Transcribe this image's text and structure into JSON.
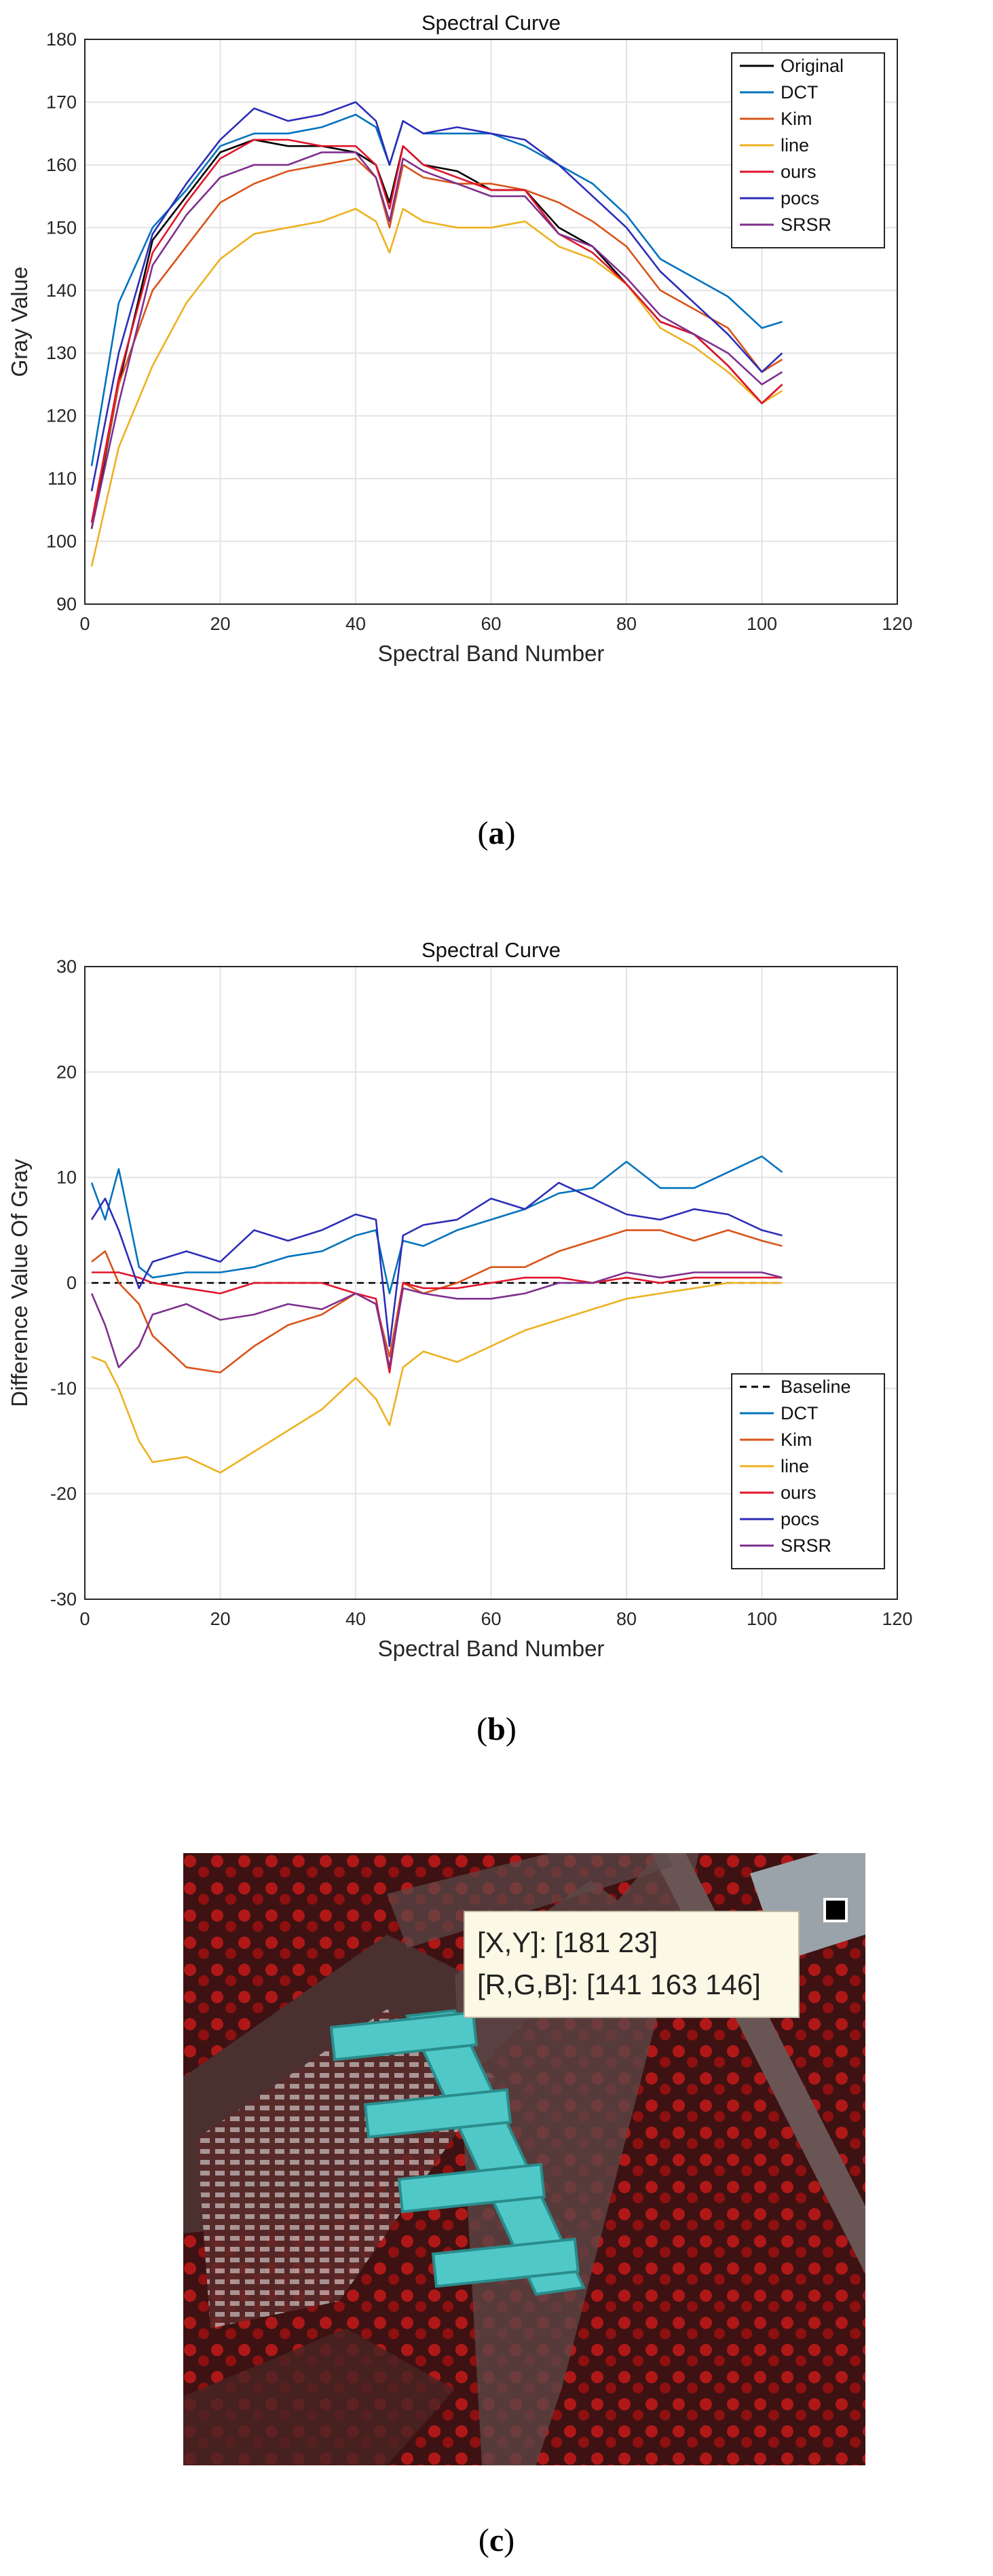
{
  "chart_data": [
    {
      "type": "line",
      "title": "Spectral Curve",
      "xlabel": "Spectral Band Number",
      "ylabel": "Gray Value",
      "xlim": [
        0,
        120
      ],
      "ylim": [
        90,
        180
      ],
      "xticks": [
        0,
        20,
        40,
        60,
        80,
        100,
        120
      ],
      "yticks": [
        90,
        100,
        110,
        120,
        130,
        140,
        150,
        160,
        170,
        180
      ],
      "grid": true,
      "legend_position": "top-right",
      "x": [
        1,
        5,
        10,
        15,
        20,
        25,
        30,
        35,
        40,
        43,
        45,
        47,
        50,
        55,
        60,
        65,
        70,
        75,
        80,
        85,
        90,
        95,
        100,
        103
      ],
      "series": [
        {
          "name": "Original",
          "color": "#000000",
          "dash": "",
          "values": [
            102,
            125,
            148,
            155,
            162,
            164,
            163,
            163,
            162,
            160,
            154,
            163,
            160,
            159,
            156,
            156,
            150,
            147,
            141,
            135,
            133,
            128,
            122,
            125
          ]
        },
        {
          "name": "DCT",
          "color": "#0072bd",
          "dash": "",
          "values": [
            112,
            138,
            150,
            156,
            163,
            165,
            165,
            166,
            168,
            166,
            160,
            167,
            165,
            165,
            165,
            163,
            160,
            157,
            152,
            145,
            142,
            139,
            134,
            135
          ]
        },
        {
          "name": "Kim",
          "color": "#d95319",
          "dash": "",
          "values": [
            103,
            125,
            140,
            147,
            154,
            157,
            159,
            160,
            161,
            158,
            150,
            160,
            158,
            157,
            157,
            156,
            154,
            151,
            147,
            140,
            137,
            134,
            127,
            129
          ]
        },
        {
          "name": "line",
          "color": "#edb120",
          "dash": "",
          "values": [
            96,
            115,
            128,
            138,
            145,
            149,
            150,
            151,
            153,
            151,
            146,
            153,
            151,
            150,
            150,
            151,
            147,
            145,
            141,
            134,
            131,
            127,
            122,
            124
          ]
        },
        {
          "name": "ours",
          "color": "#e0142b",
          "dash": "",
          "values": [
            103,
            126,
            146,
            154,
            161,
            164,
            164,
            163,
            163,
            160,
            153,
            163,
            160,
            158,
            156,
            156,
            149,
            146,
            141,
            135,
            133,
            128,
            122,
            125
          ]
        },
        {
          "name": "pocs",
          "color": "#2d2db8",
          "dash": "",
          "values": [
            108,
            130,
            149,
            157,
            164,
            169,
            167,
            168,
            170,
            167,
            160,
            167,
            165,
            166,
            165,
            164,
            160,
            155,
            150,
            143,
            138,
            133,
            127,
            130
          ]
        },
        {
          "name": "SRSR",
          "color": "#7e2f8e",
          "dash": "",
          "values": [
            102,
            122,
            144,
            152,
            158,
            160,
            160,
            162,
            162,
            158,
            151,
            161,
            159,
            157,
            155,
            155,
            149,
            147,
            142,
            136,
            133,
            130,
            125,
            127
          ]
        }
      ]
    },
    {
      "type": "line",
      "title": "Spectral Curve",
      "xlabel": "Spectral Band Number",
      "ylabel": "Difference Value Of Gray",
      "xlim": [
        0,
        120
      ],
      "ylim": [
        -30,
        30
      ],
      "xticks": [
        0,
        20,
        40,
        60,
        80,
        100,
        120
      ],
      "yticks": [
        -30,
        -20,
        -10,
        0,
        10,
        20,
        30
      ],
      "grid": true,
      "legend_position": "bottom-right",
      "x": [
        1,
        3,
        5,
        8,
        10,
        15,
        20,
        25,
        30,
        35,
        40,
        43,
        45,
        47,
        50,
        55,
        60,
        65,
        70,
        75,
        80,
        85,
        90,
        95,
        100,
        103
      ],
      "series": [
        {
          "name": "Baseline",
          "color": "#000000",
          "dash": "10,7",
          "values": [
            0,
            0,
            0,
            0,
            0,
            0,
            0,
            0,
            0,
            0,
            0,
            0,
            0,
            0,
            0,
            0,
            0,
            0,
            0,
            0,
            0,
            0,
            0,
            0,
            0,
            0
          ]
        },
        {
          "name": "DCT",
          "color": "#0072bd",
          "dash": "",
          "values": [
            9.5,
            6,
            10.8,
            1.5,
            0.5,
            1,
            1,
            1.5,
            2.5,
            3,
            4.5,
            5,
            -1,
            4,
            3.5,
            5,
            6,
            7,
            8.5,
            9,
            11.5,
            9,
            9,
            10.5,
            12,
            10.5
          ]
        },
        {
          "name": "Kim",
          "color": "#d95319",
          "dash": "",
          "values": [
            2,
            3,
            0,
            -2,
            -5,
            -8,
            -8.5,
            -6,
            -4,
            -3,
            -1,
            -2,
            -7,
            0,
            -1,
            0,
            1.5,
            1.5,
            3,
            4,
            5,
            5,
            4,
            5,
            4,
            3.5
          ]
        },
        {
          "name": "line",
          "color": "#edb120",
          "dash": "",
          "values": [
            -7,
            -7.5,
            -10,
            -15,
            -17,
            -16.5,
            -18,
            -16,
            -14,
            -12,
            -9,
            -11,
            -13.5,
            -8,
            -6.5,
            -7.5,
            -6,
            -4.5,
            -3.5,
            -2.5,
            -1.5,
            -1,
            -0.5,
            0,
            0,
            0
          ]
        },
        {
          "name": "ours",
          "color": "#e0142b",
          "dash": "",
          "values": [
            1,
            1,
            1,
            0.5,
            0,
            -0.5,
            -1,
            0,
            0,
            0,
            -1,
            -1.5,
            -8.5,
            0,
            -0.5,
            -0.5,
            0,
            0.5,
            0.5,
            0,
            0.5,
            0,
            0.5,
            0.5,
            0.5,
            0.5
          ]
        },
        {
          "name": "pocs",
          "color": "#2d2db8",
          "dash": "",
          "values": [
            6,
            8,
            5,
            -0.5,
            2,
            3,
            2,
            5,
            4,
            5,
            6.5,
            6,
            -6,
            4.5,
            5.5,
            6,
            8,
            7,
            9.5,
            8,
            6.5,
            6,
            7,
            6.5,
            5,
            4.5
          ]
        },
        {
          "name": "SRSR",
          "color": "#7e2f8e",
          "dash": "",
          "values": [
            -1,
            -4,
            -8,
            -6,
            -3,
            -2,
            -3.5,
            -3,
            -2,
            -2.5,
            -1,
            -2,
            -8,
            -0.5,
            -1,
            -1.5,
            -1.5,
            -1,
            0,
            0,
            1,
            0.5,
            1,
            1,
            1,
            0.5
          ]
        }
      ]
    }
  ],
  "captions": {
    "a": "a",
    "b": "b",
    "c": "c"
  },
  "tooltip": {
    "xy": "[X,Y]: [181 23]",
    "rgb": "[R,G,B]: [141 163 146]"
  }
}
